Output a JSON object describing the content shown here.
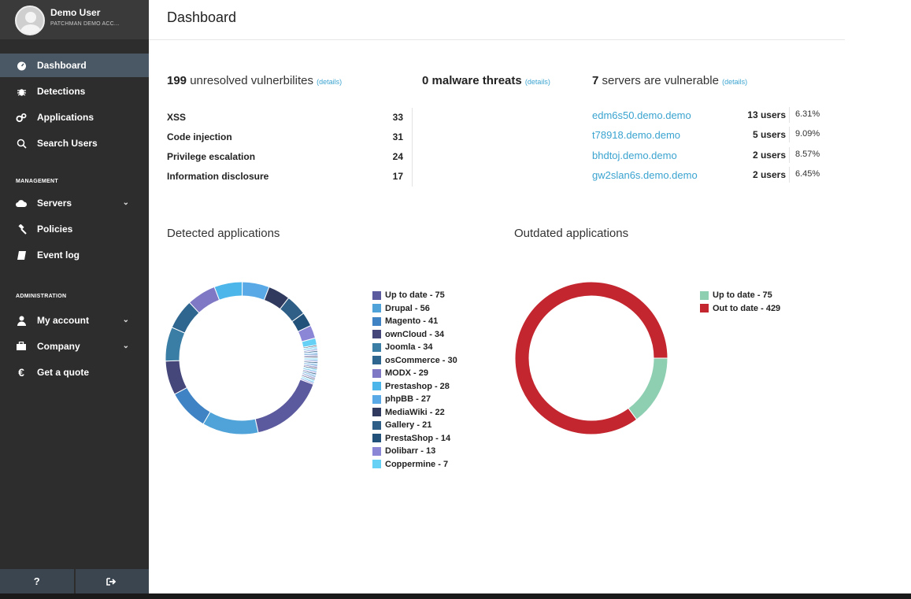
{
  "user": {
    "name": "Demo User",
    "org": "PATCHMAN DEMO ACC..."
  },
  "nav": [
    {
      "id": "dashboard",
      "label": "Dashboard",
      "icon": "tachometer-icon"
    },
    {
      "id": "detections",
      "label": "Detections",
      "icon": "bug-icon"
    },
    {
      "id": "applications",
      "label": "Applications",
      "icon": "cogs-icon"
    },
    {
      "id": "search-users",
      "label": "Search Users",
      "icon": "search-icon"
    }
  ],
  "management": {
    "label": "MANAGEMENT",
    "items": [
      {
        "id": "servers",
        "label": "Servers",
        "icon": "cloud-icon",
        "chevron": "⌄"
      },
      {
        "id": "policies",
        "label": "Policies",
        "icon": "gavel-icon"
      },
      {
        "id": "event-log",
        "label": "Event log",
        "icon": "book-icon"
      }
    ]
  },
  "administration": {
    "label": "ADMINISTRATION",
    "items": [
      {
        "id": "my-account",
        "label": "My account",
        "icon": "user-icon",
        "chevron": "⌄"
      },
      {
        "id": "company",
        "label": "Company",
        "icon": "briefcase-icon",
        "chevron": "⌄"
      },
      {
        "id": "get-a-quote",
        "label": "Get a quote",
        "icon": "euro-icon"
      }
    ]
  },
  "bottom": {
    "help": "?",
    "logout_icon": "sign-out-icon"
  },
  "page": {
    "title": "Dashboard"
  },
  "vulns": {
    "count": "199",
    "text": "unresolved vulnerbilites",
    "details": "(details)",
    "rows": [
      {
        "label": "XSS",
        "value": "33"
      },
      {
        "label": "Code injection",
        "value": "31"
      },
      {
        "label": "Privilege escalation",
        "value": "24"
      },
      {
        "label": "Information disclosure",
        "value": "17"
      }
    ]
  },
  "malware": {
    "count": "0",
    "text": "malware threats",
    "details": "(details)"
  },
  "servers": {
    "count": "7",
    "text": "servers are vulnerable",
    "details": "(details)",
    "rows": [
      {
        "host": "edm6s50.demo.demo",
        "users": "13 users",
        "pct": "6.31%"
      },
      {
        "host": "t78918.demo.demo",
        "users": "5 users",
        "pct": "9.09%"
      },
      {
        "host": "bhdtoj.demo.demo",
        "users": "2 users",
        "pct": "8.57%"
      },
      {
        "host": "gw2slan6s.demo.demo",
        "users": "2 users",
        "pct": "6.45%"
      }
    ]
  },
  "chart_data": [
    {
      "type": "pie",
      "title": "Detected applications",
      "labels": [
        "Up to date",
        "Drupal",
        "Magento",
        "ownCloud",
        "Joomla",
        "osCommerce",
        "MODX",
        "Prestashop",
        "phpBB",
        "MediaWiki",
        "Gallery",
        "PrestaShop",
        "Dolibarr",
        "Coppermine"
      ],
      "legend": [
        "Up to date - 75",
        "Drupal - 56",
        "Magento - 41",
        "ownCloud - 34",
        "Joomla - 34",
        "osCommerce - 30",
        "MODX - 29",
        "Prestashop - 28",
        "phpBB - 27",
        "MediaWiki - 22",
        "Gallery - 21",
        "PrestaShop - 14",
        "Dolibarr - 13",
        "Coppermine - 7"
      ],
      "values": [
        75,
        56,
        41,
        34,
        34,
        30,
        29,
        28,
        27,
        22,
        21,
        14,
        13,
        7
      ],
      "colors": [
        "#5c5a9e",
        "#4fa3d8",
        "#3f83c4",
        "#45477a",
        "#3a7ea6",
        "#2e6690",
        "#7f78c4",
        "#4cb5ea",
        "#59a9e6",
        "#2f3a5e",
        "#2f5f86",
        "#22527a",
        "#8b87d6",
        "#66d0f5"
      ],
      "extra_slices": 28,
      "legend_position": "right"
    },
    {
      "type": "pie",
      "title": "Outdated applications",
      "labels": [
        "Up to date",
        "Out to date"
      ],
      "legend": [
        "Up to date - 75",
        "Out to date - 429"
      ],
      "values": [
        75,
        429
      ],
      "colors": [
        "#8ecfb2",
        "#c3262f"
      ],
      "legend_position": "right"
    }
  ]
}
